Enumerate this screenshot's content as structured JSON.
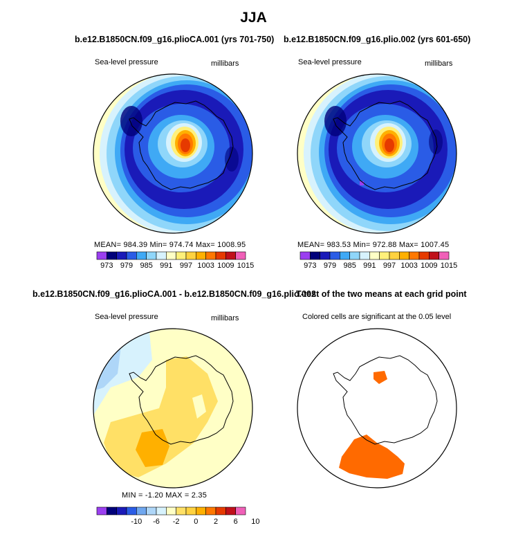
{
  "main_title": "JJA",
  "chart_data": [
    {
      "type": "heatmap",
      "title": "b.e12.B1850CN.f09_g16.plioCA.001 (yrs 701-750)",
      "left_label": "Sea-level pressure",
      "right_label": "millibars",
      "stats": {
        "mean": "984.39",
        "min": "974.74",
        "max": "1008.95"
      },
      "stats_text": "MEAN= 984.39   Min= 974.74   Max= 1008.95",
      "levels": [
        "973",
        "979",
        "985",
        "991",
        "997",
        "1003",
        "1009",
        "1015"
      ],
      "colors": [
        "#9b3ff0",
        "#00007a",
        "#1a1ab8",
        "#2a5ce6",
        "#3fa9f5",
        "#8fd6fa",
        "#d7f2fd",
        "#ffffc6",
        "#fff07a",
        "#ffd240",
        "#ffb000",
        "#ff7800",
        "#e63a00",
        "#c0101a",
        "#f060b8"
      ]
    },
    {
      "type": "heatmap",
      "title": "b.e12.B1850CN.f09_g16.plio.002 (yrs 601-650)",
      "left_label": "Sea-level pressure",
      "right_label": "millibars",
      "stats": {
        "mean": "983.53",
        "min": "972.88",
        "max": "1007.45"
      },
      "stats_text": "MEAN= 983.53   Min= 972.88   Max= 1007.45",
      "levels": [
        "973",
        "979",
        "985",
        "991",
        "997",
        "1003",
        "1009",
        "1015"
      ]
    },
    {
      "type": "heatmap",
      "title": "b.e12.B1850CN.f09_g16.plioCA.001 - b.e12.B1850CN.f09_g16.plio.002",
      "left_label": "Sea-level pressure",
      "right_label": "millibars",
      "stats": {
        "min": "-1.20",
        "max": "2.35"
      },
      "stats_text": "MIN =   -1.20  MAX =    2.35",
      "levels": [
        "-10",
        "-6",
        "-2",
        "0",
        "2",
        "6",
        "10"
      ],
      "colors": [
        "#9b3ff0",
        "#00007a",
        "#1a1ab8",
        "#2a5ce6",
        "#6fa7ef",
        "#aed6f8",
        "#d7f2fd",
        "#ffffc6",
        "#ffe066",
        "#ffd240",
        "#ffb000",
        "#ff7800",
        "#e63a00",
        "#c0101a",
        "#f060b8"
      ]
    },
    {
      "type": "heatmap",
      "title": "T-test of the two means at each grid point",
      "left_label": "Colored cells are significant at the 0.05 level",
      "significant_color": "#ff6a00"
    }
  ]
}
